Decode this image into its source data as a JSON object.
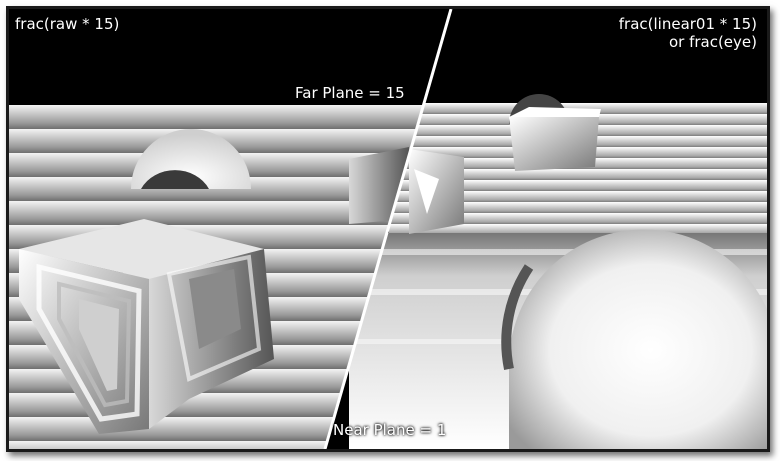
{
  "labels": {
    "left_title": "frac(raw * 15)",
    "right_title_line1": "frac(linear01 * 15)",
    "right_title_line2": "or frac(eye)",
    "far_plane": "Far Plane = 15",
    "near_plane": "Near Plane = 1"
  }
}
